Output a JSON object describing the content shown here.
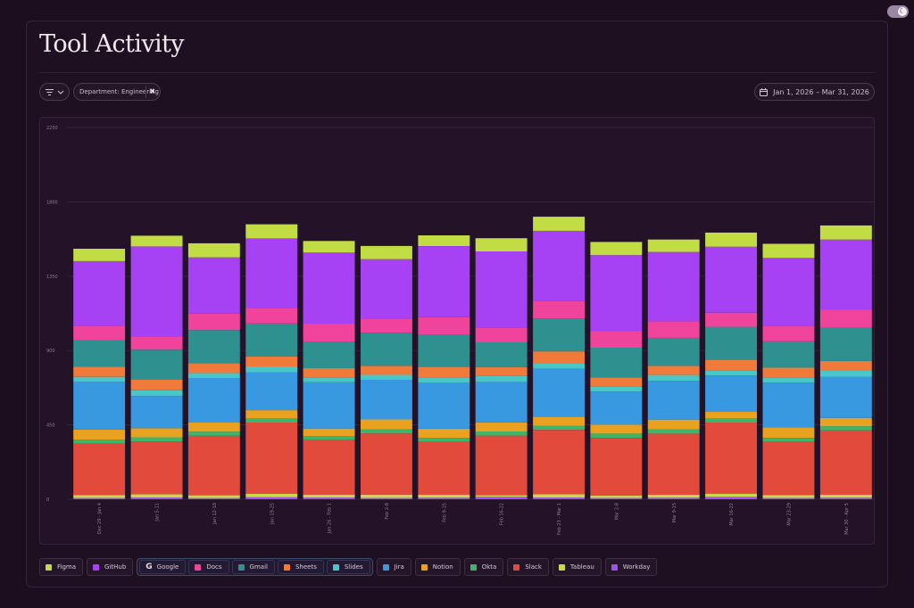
{
  "page": {
    "title": "Tool Activity",
    "filter_chip": "Department: Engineering",
    "date_range": "Jan 1, 2026 – Mar 31, 2026"
  },
  "icons": {
    "toggle": "moon-icon",
    "filter": "filter-icon",
    "chevron": "chevron-down-icon",
    "remove": "close-icon",
    "calendar": "calendar-icon",
    "google": "google-logo-icon"
  },
  "legend": {
    "items": [
      {
        "name": "Figma",
        "color": "#c2dc44"
      },
      {
        "name": "GitHub",
        "color": "#a642f4"
      }
    ],
    "group": {
      "name": "Google",
      "items": [
        {
          "name": "Docs",
          "color": "#f0449c"
        },
        {
          "name": "Gmail",
          "color": "#2f9090"
        },
        {
          "name": "Sheets",
          "color": "#f07a3a"
        },
        {
          "name": "Slides",
          "color": "#48c6c8"
        }
      ]
    },
    "items_after": [
      {
        "name": "Jira",
        "color": "#3898e0"
      },
      {
        "name": "Notion",
        "color": "#e8a21f"
      },
      {
        "name": "Okta",
        "color": "#3fb56a"
      },
      {
        "name": "Slack",
        "color": "#e24b3c"
      },
      {
        "name": "Tableau",
        "color": "#c8d94a"
      },
      {
        "name": "Workday",
        "color": "#a24ef4"
      }
    ]
  },
  "chart_data": {
    "type": "bar",
    "stacked": true,
    "ylim": [
      0,
      2250
    ],
    "yticks": [
      "0",
      "450",
      "900",
      "1350",
      "1800",
      "2250"
    ],
    "grid": true,
    "legend_position": "bottom",
    "categories": [
      "Dec 29 - Jan 4",
      "Jan 5-11",
      "Jan 12-18",
      "Jan 19-25",
      "Jan 26 - Feb 1",
      "Feb 2-8",
      "Feb 9-15",
      "Feb 16-22",
      "Feb 23 - Mar 1",
      "Mar 2-8",
      "Mar 9-15",
      "Mar 16-22",
      "Mar 23-29",
      "Mar 30 - Apr 5"
    ],
    "series": [
      {
        "name": "Workday",
        "color": "#a24ef4",
        "values": [
          8,
          10,
          8,
          12,
          10,
          8,
          9,
          15,
          10,
          8,
          9,
          14,
          8,
          9
        ]
      },
      {
        "name": "Tableau",
        "color": "#c8d94a",
        "values": [
          18,
          20,
          16,
          22,
          18,
          20,
          18,
          10,
          20,
          14,
          18,
          20,
          18,
          18
        ]
      },
      {
        "name": "Slack",
        "color": "#e24b3c",
        "values": [
          310,
          320,
          360,
          430,
          330,
          370,
          320,
          360,
          390,
          350,
          370,
          430,
          320,
          390
        ]
      },
      {
        "name": "Okta",
        "color": "#3fb56a",
        "values": [
          25,
          25,
          25,
          25,
          25,
          25,
          25,
          25,
          25,
          25,
          25,
          25,
          25,
          25
        ]
      },
      {
        "name": "Notion",
        "color": "#e8a21f",
        "values": [
          60,
          55,
          55,
          50,
          45,
          60,
          55,
          55,
          55,
          55,
          60,
          40,
          65,
          50
        ]
      },
      {
        "name": "Jira",
        "color": "#3898e0",
        "values": [
          290,
          195,
          270,
          230,
          280,
          240,
          280,
          245,
          290,
          200,
          235,
          220,
          270,
          250
        ]
      },
      {
        "name": "Slides",
        "color": "#48c6c8",
        "values": [
          30,
          35,
          30,
          35,
          30,
          30,
          30,
          35,
          35,
          30,
          35,
          30,
          30,
          35
        ]
      },
      {
        "name": "Sheets",
        "color": "#f07a3a",
        "values": [
          60,
          65,
          60,
          60,
          55,
          55,
          65,
          55,
          70,
          55,
          55,
          65,
          60,
          60
        ]
      },
      {
        "name": "Gmail",
        "color": "#2f9090",
        "values": [
          160,
          180,
          200,
          200,
          160,
          200,
          195,
          150,
          200,
          180,
          170,
          200,
          160,
          200
        ]
      },
      {
        "name": "Docs",
        "color": "#f0449c",
        "values": [
          90,
          80,
          100,
          95,
          110,
          85,
          105,
          90,
          105,
          100,
          100,
          85,
          95,
          110
        ]
      },
      {
        "name": "GitHub",
        "color": "#a642f4",
        "values": [
          390,
          545,
          340,
          420,
          430,
          360,
          430,
          460,
          425,
          460,
          420,
          400,
          410,
          425
        ]
      },
      {
        "name": "Figma",
        "color": "#c2dc44",
        "values": [
          75,
          65,
          85,
          85,
          70,
          80,
          65,
          80,
          85,
          80,
          75,
          85,
          85,
          85
        ]
      }
    ]
  }
}
